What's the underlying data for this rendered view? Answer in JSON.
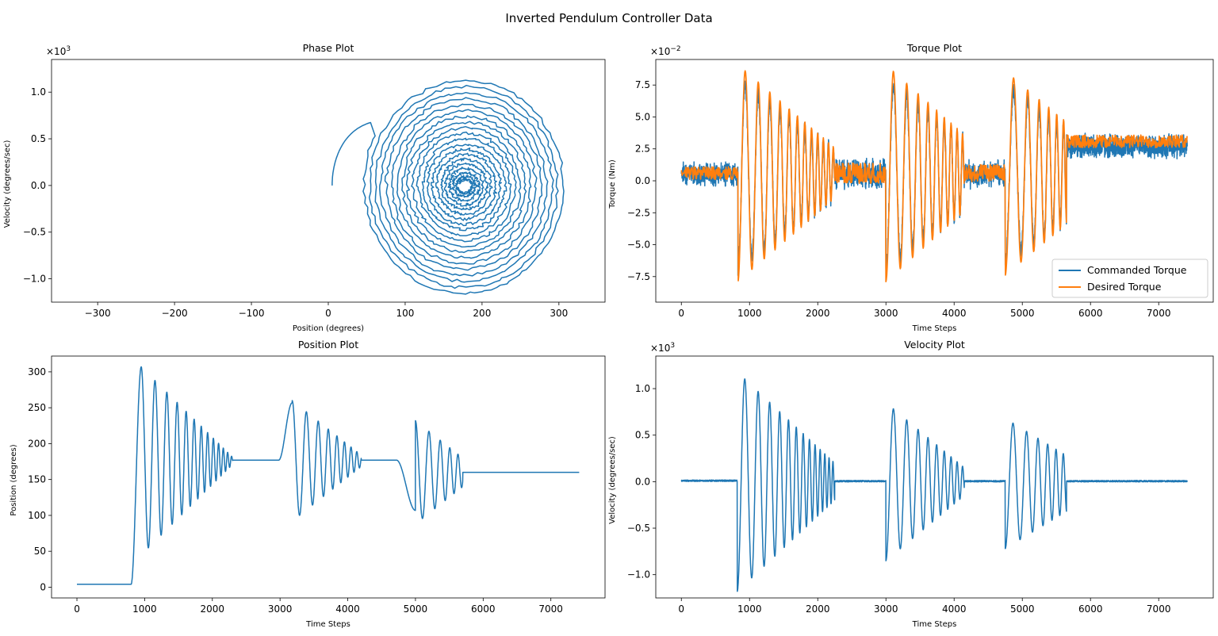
{
  "figure": {
    "title": "Inverted Pendulum Controller Data"
  },
  "colors": {
    "series1": "#1f77b4",
    "series2": "#ff7f0e",
    "frame": "#000000"
  },
  "chart_data": [
    {
      "id": "phase",
      "type": "line",
      "title": "Phase Plot",
      "xlabel": "Position (degrees)",
      "ylabel": "Velocity (degrees/sec)",
      "xlim": [
        -360,
        360
      ],
      "ylim": [
        -1250,
        1350
      ],
      "xticks": [
        -300,
        -200,
        -100,
        0,
        100,
        200,
        300
      ],
      "xtick_labels": [
        "−300",
        "−200",
        "−100",
        "0",
        "100",
        "200",
        "300"
      ],
      "yticks": [
        -1000,
        -500,
        0,
        500,
        1000
      ],
      "ytick_labels": [
        "−1.0",
        "−0.5",
        "0.0",
        "0.5",
        "1.0"
      ],
      "y_offset_label": "×10",
      "y_offset_exp": "3",
      "series": [
        {
          "kind": "phase_spiral",
          "center": [
            178,
            0
          ],
          "start": [
            5,
            0
          ],
          "rx_max": 132,
          "rx_min": 8,
          "ry_max": 1180,
          "ry_min": 60,
          "turns": 20
        }
      ]
    },
    {
      "id": "torque",
      "type": "line",
      "title": "Torque Plot",
      "xlabel": "Time Steps",
      "ylabel": "Torque (Nm)",
      "xlim": [
        -375,
        7800
      ],
      "ylim": [
        -0.095,
        0.095
      ],
      "xticks": [
        0,
        1000,
        2000,
        3000,
        4000,
        5000,
        6000,
        7000
      ],
      "xtick_labels": [
        "0",
        "1000",
        "2000",
        "3000",
        "4000",
        "5000",
        "6000",
        "7000"
      ],
      "yticks": [
        -0.075,
        -0.05,
        -0.025,
        0,
        0.025,
        0.05,
        0.075
      ],
      "ytick_labels": [
        "−7.5",
        "−5.0",
        "−2.5",
        "0.0",
        "2.5",
        "5.0",
        "7.5"
      ],
      "y_offset_label": "×10",
      "y_offset_exp": "−2",
      "legend": {
        "position": "lower-right",
        "entries": [
          "Commanded Torque",
          "Desired Torque"
        ]
      },
      "segments": [
        {
          "type": "hold",
          "t0": 0,
          "t1": 830,
          "value": 0.006,
          "noise": 0.005
        },
        {
          "type": "osc",
          "t0": 830,
          "t1": 2250,
          "base": 0.006,
          "a0": 0.085,
          "a1": 0.02,
          "period0": 220,
          "period1": 120,
          "clip": 0.088
        },
        {
          "type": "hold",
          "t0": 2250,
          "t1": 3000,
          "value": 0.006,
          "noise": 0.008
        },
        {
          "type": "osc",
          "t0": 3000,
          "t1": 4150,
          "base": 0.006,
          "a0": 0.085,
          "a1": 0.03,
          "period0": 230,
          "period1": 130,
          "clip": 0.088
        },
        {
          "type": "hold",
          "t0": 4150,
          "t1": 4750,
          "value": 0.006,
          "noise": 0.007
        },
        {
          "type": "osc",
          "t0": 4750,
          "t1": 5650,
          "base": 0.006,
          "a0": 0.08,
          "a1": 0.04,
          "period0": 260,
          "period1": 150,
          "clip": 0.088
        },
        {
          "type": "hold",
          "t0": 5650,
          "t1": 7420,
          "value": 0.031,
          "noise": 0.005
        }
      ]
    },
    {
      "id": "position",
      "type": "line",
      "title": "Position Plot",
      "xlabel": "Time Steps",
      "ylabel": "Position (degrees)",
      "xlim": [
        -375,
        7800
      ],
      "ylim": [
        -15,
        322
      ],
      "xticks": [
        0,
        1000,
        2000,
        3000,
        4000,
        5000,
        6000,
        7000
      ],
      "xtick_labels": [
        "0",
        "1000",
        "2000",
        "3000",
        "4000",
        "5000",
        "6000",
        "7000"
      ],
      "yticks": [
        0,
        50,
        100,
        150,
        200,
        250,
        300
      ],
      "ytick_labels": [
        "0",
        "50",
        "100",
        "150",
        "200",
        "250",
        "300"
      ],
      "segments": [
        {
          "type": "hold",
          "t0": 0,
          "t1": 800,
          "value": 4
        },
        {
          "type": "rise",
          "t0": 800,
          "t1": 950,
          "v0": 4,
          "v1": 307
        },
        {
          "type": "damped",
          "t0": 950,
          "t1": 2300,
          "center": 176,
          "a0": 131,
          "a1": 5,
          "period0": 220,
          "period1": 110
        },
        {
          "type": "hold",
          "t0": 2300,
          "t1": 2980,
          "value": 177
        },
        {
          "type": "rise",
          "t0": 2980,
          "t1": 3180,
          "v0": 177,
          "v1": 257
        },
        {
          "type": "damped",
          "t0": 3180,
          "t1": 4200,
          "center": 176,
          "a0": 84,
          "a1": 8,
          "period0": 230,
          "period1": 130
        },
        {
          "type": "hold",
          "t0": 4200,
          "t1": 4720,
          "value": 177
        },
        {
          "type": "rise",
          "t0": 4720,
          "t1": 5000,
          "v0": 177,
          "v1": 107
        },
        {
          "type": "damped",
          "t0": 5000,
          "t1": 5700,
          "center": 160,
          "a0": 72,
          "a1": 20,
          "period0": 220,
          "period1": 150
        },
        {
          "type": "hold",
          "t0": 5700,
          "t1": 7420,
          "value": 160
        }
      ]
    },
    {
      "id": "velocity",
      "type": "line",
      "title": "Velocity Plot",
      "xlabel": "Time Steps",
      "ylabel": "Velocity (degrees/sec)",
      "xlim": [
        -375,
        7800
      ],
      "ylim": [
        -1250,
        1350
      ],
      "xticks": [
        0,
        1000,
        2000,
        3000,
        4000,
        5000,
        6000,
        7000
      ],
      "xtick_labels": [
        "0",
        "1000",
        "2000",
        "3000",
        "4000",
        "5000",
        "6000",
        "7000"
      ],
      "yticks": [
        -1000,
        -500,
        0,
        500,
        1000
      ],
      "ytick_labels": [
        "−1.0",
        "−0.5",
        "0.0",
        "0.5",
        "1.0"
      ],
      "y_offset_label": "×10",
      "y_offset_exp": "3",
      "segments": [
        {
          "type": "hold",
          "t0": 0,
          "t1": 820,
          "value": 10,
          "noise": 8
        },
        {
          "type": "osc",
          "t0": 820,
          "t1": 2250,
          "base": 0,
          "a0": 1180,
          "a1": 200,
          "period0": 230,
          "period1": 110
        },
        {
          "type": "hold",
          "t0": 2250,
          "t1": 3000,
          "value": 5,
          "noise": 8
        },
        {
          "type": "osc",
          "t0": 3000,
          "t1": 4150,
          "base": 0,
          "a0": 850,
          "a1": 150,
          "period0": 230,
          "period1": 130
        },
        {
          "type": "hold",
          "t0": 4150,
          "t1": 4750,
          "value": 5,
          "noise": 8
        },
        {
          "type": "osc",
          "t0": 4750,
          "t1": 5650,
          "base": -20,
          "a0": 700,
          "a1": 300,
          "period0": 240,
          "period1": 150
        },
        {
          "type": "hold",
          "t0": 5650,
          "t1": 7420,
          "value": 5,
          "noise": 8
        }
      ]
    }
  ]
}
